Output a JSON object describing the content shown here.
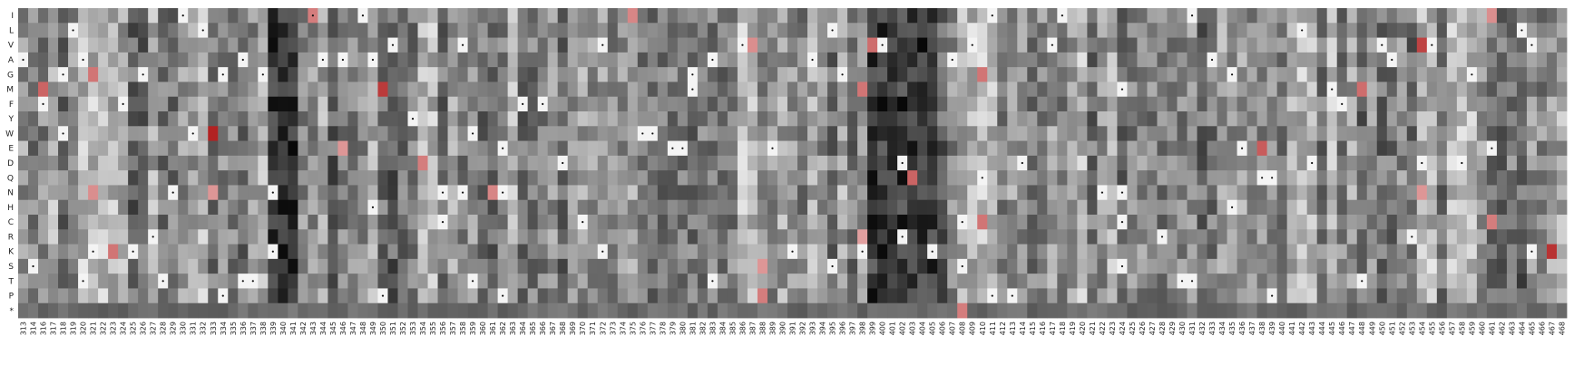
{
  "chart_data": {
    "type": "heatmap",
    "title": "",
    "xlabel": "",
    "ylabel": "",
    "rows": [
      "I",
      "L",
      "V",
      "A",
      "G",
      "M",
      "F",
      "Y",
      "W",
      "E",
      "D",
      "Q",
      "N",
      "H",
      "C",
      "R",
      "K",
      "S",
      "T",
      "P",
      "*"
    ],
    "x_start": 313,
    "x_end": 468,
    "columns": [
      "313",
      "314",
      "316",
      "317",
      "318",
      "319",
      "320",
      "321",
      "322",
      "323",
      "324",
      "325",
      "326",
      "327",
      "328",
      "329",
      "330",
      "331",
      "332",
      "333",
      "334",
      "335",
      "336",
      "337",
      "338",
      "339",
      "340",
      "341",
      "342",
      "343",
      "344",
      "345",
      "346",
      "347",
      "348",
      "349",
      "350",
      "351",
      "352",
      "353",
      "354",
      "355",
      "356",
      "357",
      "358",
      "359",
      "360",
      "361",
      "362",
      "363",
      "364",
      "365",
      "366",
      "367",
      "368",
      "369",
      "370",
      "371",
      "372",
      "373",
      "374",
      "375",
      "376",
      "377",
      "378",
      "379",
      "380",
      "381",
      "382",
      "383",
      "384",
      "385",
      "386",
      "387",
      "388",
      "389",
      "390",
      "391",
      "392",
      "393",
      "394",
      "395",
      "396",
      "397",
      "398",
      "399",
      "400",
      "401",
      "402",
      "403",
      "404",
      "405",
      "406",
      "407",
      "408",
      "409",
      "410",
      "411",
      "412",
      "413",
      "414",
      "415",
      "416",
      "417",
      "418",
      "419",
      "420",
      "421",
      "422",
      "423",
      "424",
      "425",
      "426",
      "427",
      "428",
      "429",
      "430",
      "431",
      "432",
      "433",
      "434",
      "435",
      "436",
      "437",
      "438",
      "439",
      "440",
      "441",
      "442",
      "443",
      "444",
      "445",
      "446",
      "447",
      "448",
      "449",
      "450",
      "451",
      "452",
      "453",
      "454",
      "455",
      "456",
      "457",
      "458",
      "459",
      "460",
      "461",
      "462",
      "463",
      "464",
      "465",
      "466",
      "467",
      "468"
    ],
    "color_scale": {
      "low": "#111111",
      "mid": "#ffffff",
      "high": "#b22222",
      "description": "dark grey (low) to white (neutral) to red (high)"
    },
    "marker_note": "small dot marks the wild-type residue at each position",
    "highlights": [
      {
        "row": "I",
        "col": "343",
        "level": 0.45
      },
      {
        "row": "I",
        "col": "375",
        "level": 0.4
      },
      {
        "row": "I",
        "col": "461",
        "level": 0.35
      },
      {
        "row": "V",
        "col": "387",
        "level": 0.35
      },
      {
        "row": "V",
        "col": "399",
        "level": 0.55
      },
      {
        "row": "V",
        "col": "454",
        "level": 0.8
      },
      {
        "row": "G",
        "col": "321",
        "level": 0.5
      },
      {
        "row": "G",
        "col": "410",
        "level": 0.5
      },
      {
        "row": "M",
        "col": "316",
        "level": 0.6
      },
      {
        "row": "M",
        "col": "350",
        "level": 0.85
      },
      {
        "row": "M",
        "col": "398",
        "level": 0.5
      },
      {
        "row": "M",
        "col": "448",
        "level": 0.55
      },
      {
        "row": "W",
        "col": "333",
        "level": 1.0
      },
      {
        "row": "E",
        "col": "346",
        "level": 0.3
      },
      {
        "row": "E",
        "col": "438",
        "level": 0.65
      },
      {
        "row": "D",
        "col": "354",
        "level": 0.45
      },
      {
        "row": "Q",
        "col": "403",
        "level": 0.6
      },
      {
        "row": "N",
        "col": "321",
        "level": 0.35
      },
      {
        "row": "N",
        "col": "333",
        "level": 0.3
      },
      {
        "row": "N",
        "col": "361",
        "level": 0.4
      },
      {
        "row": "N",
        "col": "454",
        "level": 0.3
      },
      {
        "row": "C",
        "col": "410",
        "level": 0.5
      },
      {
        "row": "C",
        "col": "461",
        "level": 0.45
      },
      {
        "row": "R",
        "col": "398",
        "level": 0.25
      },
      {
        "row": "K",
        "col": "323",
        "level": 0.5
      },
      {
        "row": "K",
        "col": "467",
        "level": 0.9
      },
      {
        "row": "S",
        "col": "388",
        "level": 0.3
      },
      {
        "row": "P",
        "col": "388",
        "level": 0.45
      },
      {
        "row": "*",
        "col": "408",
        "level": 0.45
      }
    ],
    "wildtype_markers": [
      {
        "row": "I",
        "col": "330"
      },
      {
        "row": "I",
        "col": "343"
      },
      {
        "row": "I",
        "col": "348"
      },
      {
        "row": "I",
        "col": "411"
      },
      {
        "row": "I",
        "col": "418"
      },
      {
        "row": "I",
        "col": "431"
      },
      {
        "row": "L",
        "col": "319"
      },
      {
        "row": "L",
        "col": "332"
      },
      {
        "row": "L",
        "col": "395"
      },
      {
        "row": "L",
        "col": "442"
      },
      {
        "row": "L",
        "col": "464"
      },
      {
        "row": "V",
        "col": "351"
      },
      {
        "row": "V",
        "col": "358"
      },
      {
        "row": "V",
        "col": "372"
      },
      {
        "row": "V",
        "col": "386"
      },
      {
        "row": "V",
        "col": "400"
      },
      {
        "row": "V",
        "col": "409"
      },
      {
        "row": "V",
        "col": "417"
      },
      {
        "row": "V",
        "col": "450"
      },
      {
        "row": "V",
        "col": "455"
      },
      {
        "row": "V",
        "col": "465"
      },
      {
        "row": "A",
        "col": "313"
      },
      {
        "row": "A",
        "col": "320"
      },
      {
        "row": "A",
        "col": "336"
      },
      {
        "row": "A",
        "col": "344"
      },
      {
        "row": "A",
        "col": "346"
      },
      {
        "row": "A",
        "col": "349"
      },
      {
        "row": "A",
        "col": "383"
      },
      {
        "row": "A",
        "col": "393"
      },
      {
        "row": "A",
        "col": "407"
      },
      {
        "row": "A",
        "col": "433"
      },
      {
        "row": "A",
        "col": "451"
      },
      {
        "row": "G",
        "col": "318"
      },
      {
        "row": "G",
        "col": "326"
      },
      {
        "row": "G",
        "col": "334"
      },
      {
        "row": "G",
        "col": "338"
      },
      {
        "row": "G",
        "col": "381"
      },
      {
        "row": "G",
        "col": "396"
      },
      {
        "row": "G",
        "col": "435"
      },
      {
        "row": "G",
        "col": "459"
      },
      {
        "row": "M",
        "col": "381"
      },
      {
        "row": "M",
        "col": "445"
      },
      {
        "row": "M",
        "col": "424"
      },
      {
        "row": "F",
        "col": "316"
      },
      {
        "row": "F",
        "col": "324"
      },
      {
        "row": "F",
        "col": "364"
      },
      {
        "row": "F",
        "col": "366"
      },
      {
        "row": "F",
        "col": "446"
      },
      {
        "row": "Y",
        "col": "353"
      },
      {
        "row": "W",
        "col": "318"
      },
      {
        "row": "W",
        "col": "331"
      },
      {
        "row": "W",
        "col": "359"
      },
      {
        "row": "W",
        "col": "376"
      },
      {
        "row": "W",
        "col": "377"
      },
      {
        "row": "E",
        "col": "362"
      },
      {
        "row": "E",
        "col": "379"
      },
      {
        "row": "E",
        "col": "380"
      },
      {
        "row": "E",
        "col": "389"
      },
      {
        "row": "E",
        "col": "436"
      },
      {
        "row": "E",
        "col": "461"
      },
      {
        "row": "D",
        "col": "368"
      },
      {
        "row": "D",
        "col": "402"
      },
      {
        "row": "D",
        "col": "414"
      },
      {
        "row": "D",
        "col": "443"
      },
      {
        "row": "D",
        "col": "454"
      },
      {
        "row": "D",
        "col": "458"
      },
      {
        "row": "Q",
        "col": "410"
      },
      {
        "row": "Q",
        "col": "438"
      },
      {
        "row": "Q",
        "col": "439"
      },
      {
        "row": "N",
        "col": "329"
      },
      {
        "row": "N",
        "col": "339"
      },
      {
        "row": "N",
        "col": "356"
      },
      {
        "row": "N",
        "col": "358"
      },
      {
        "row": "N",
        "col": "362"
      },
      {
        "row": "N",
        "col": "422"
      },
      {
        "row": "N",
        "col": "424"
      },
      {
        "row": "H",
        "col": "349"
      },
      {
        "row": "H",
        "col": "435"
      },
      {
        "row": "C",
        "col": "356"
      },
      {
        "row": "C",
        "col": "370"
      },
      {
        "row": "C",
        "col": "408"
      },
      {
        "row": "C",
        "col": "424"
      },
      {
        "row": "R",
        "col": "327"
      },
      {
        "row": "R",
        "col": "402"
      },
      {
        "row": "R",
        "col": "428"
      },
      {
        "row": "R",
        "col": "453"
      },
      {
        "row": "K",
        "col": "321"
      },
      {
        "row": "K",
        "col": "325"
      },
      {
        "row": "K",
        "col": "339"
      },
      {
        "row": "K",
        "col": "372"
      },
      {
        "row": "K",
        "col": "391"
      },
      {
        "row": "K",
        "col": "398"
      },
      {
        "row": "K",
        "col": "405"
      },
      {
        "row": "K",
        "col": "465"
      },
      {
        "row": "S",
        "col": "314"
      },
      {
        "row": "S",
        "col": "395"
      },
      {
        "row": "S",
        "col": "408"
      },
      {
        "row": "S",
        "col": "424"
      },
      {
        "row": "T",
        "col": "320"
      },
      {
        "row": "T",
        "col": "328"
      },
      {
        "row": "T",
        "col": "336"
      },
      {
        "row": "T",
        "col": "337"
      },
      {
        "row": "T",
        "col": "359"
      },
      {
        "row": "T",
        "col": "383"
      },
      {
        "row": "T",
        "col": "430"
      },
      {
        "row": "T",
        "col": "431"
      },
      {
        "row": "T",
        "col": "448"
      },
      {
        "row": "P",
        "col": "334"
      },
      {
        "row": "P",
        "col": "350"
      },
      {
        "row": "P",
        "col": "362"
      },
      {
        "row": "P",
        "col": "411"
      },
      {
        "row": "P",
        "col": "413"
      },
      {
        "row": "P",
        "col": "439"
      }
    ],
    "dark_columns": [
      "339",
      "340",
      "341",
      "399",
      "400",
      "401",
      "402",
      "403",
      "404",
      "405"
    ],
    "light_columns": [
      "320",
      "321",
      "322",
      "323",
      "332",
      "354",
      "355",
      "386",
      "387",
      "409",
      "410",
      "411",
      "420",
      "441",
      "442",
      "443",
      "445",
      "454",
      "455",
      "457",
      "458",
      "459"
    ]
  }
}
